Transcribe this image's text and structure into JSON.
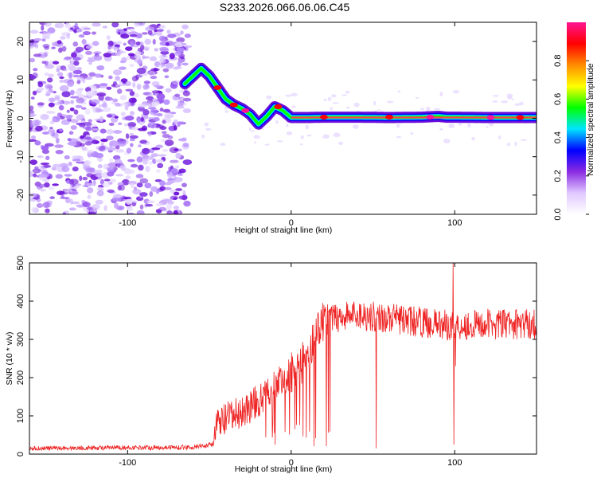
{
  "title": "S233.2026.066.06.06.C45",
  "chart_data": [
    {
      "type": "heatmap",
      "xlabel": "Height of straight line (km)",
      "ylabel": "Frequency (Hz)",
      "xlim": [
        -160,
        150
      ],
      "ylim": [
        -25,
        25
      ],
      "xticks": [
        -100,
        0,
        100
      ],
      "xtick_labels": [
        "-100",
        "0",
        "100"
      ],
      "yticks": [
        -20,
        -10,
        0,
        10,
        20
      ],
      "ytick_labels": [
        "-20",
        "-10",
        "0",
        "10",
        "20"
      ],
      "ridge": {
        "x": [
          -65,
          -60,
          -55,
          -50,
          -45,
          -40,
          -35,
          -30,
          -25,
          -20,
          -15,
          -10,
          -5,
          0,
          10,
          20,
          40,
          60,
          80,
          90,
          95,
          100,
          120,
          150
        ],
        "y": [
          9,
          11,
          13,
          11,
          8,
          5,
          3.5,
          2.5,
          1,
          -1.5,
          0.5,
          3,
          2,
          0.2,
          0.2,
          0.3,
          0.3,
          0.2,
          0.3,
          0.5,
          0.3,
          0.3,
          0.2,
          0.2
        ]
      },
      "noise_region_x": [
        -160,
        -63
      ],
      "colorbar": {
        "label": "Normalized spectral amplitude",
        "range": [
          0.0,
          1.0
        ],
        "ticks": [
          0.0,
          0.2,
          0.4,
          0.6,
          0.8
        ],
        "tick_labels": [
          "0.0",
          "0.2",
          "0.4",
          "0.6",
          "0.8"
        ],
        "colors": [
          "#ffffff",
          "#e0c8ff",
          "#8a2be2",
          "#0000ff",
          "#00e5ff",
          "#00ff00",
          "#ffff00",
          "#ff8c00",
          "#ff0000",
          "#ff1493"
        ]
      }
    },
    {
      "type": "line",
      "xlabel": "Height of straight line (km)",
      "ylabel": "SNR (10 * v/v)",
      "xlim": [
        -160,
        150
      ],
      "ylim": [
        0,
        500
      ],
      "xticks": [
        -100,
        0,
        100
      ],
      "xtick_labels": [
        "-100",
        "0",
        "100"
      ],
      "yticks": [
        0,
        100,
        200,
        300,
        400,
        500
      ],
      "ytick_labels": [
        "0",
        "100",
        "200",
        "300",
        "400",
        "500"
      ],
      "line_color": "#ee2222",
      "envelope": {
        "x": [
          -160,
          -60,
          -48,
          -45,
          -40,
          -30,
          -20,
          -10,
          0,
          10,
          15,
          20,
          30,
          40,
          60,
          80,
          100,
          120,
          150
        ],
        "y": [
          15,
          18,
          25,
          80,
          90,
          110,
          140,
          180,
          210,
          250,
          320,
          350,
          360,
          365,
          355,
          345,
          335,
          340,
          340
        ]
      },
      "spike_x": [
        99
      ],
      "spike_peak": 500,
      "dips": [
        {
          "x": 52,
          "y": 15
        },
        {
          "x": 99.5,
          "y": 25
        },
        {
          "x": 100.5,
          "y": 230
        }
      ]
    }
  ]
}
